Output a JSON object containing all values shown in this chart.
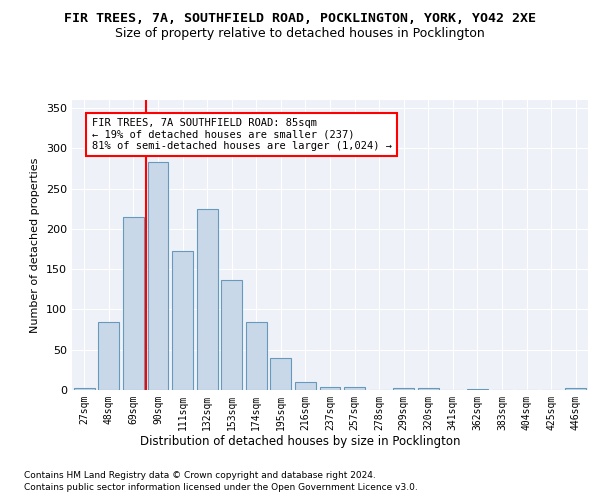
{
  "title1": "FIR TREES, 7A, SOUTHFIELD ROAD, POCKLINGTON, YORK, YO42 2XE",
  "title2": "Size of property relative to detached houses in Pocklington",
  "xlabel": "Distribution of detached houses by size in Pocklington",
  "ylabel": "Number of detached properties",
  "categories": [
    "27sqm",
    "48sqm",
    "69sqm",
    "90sqm",
    "111sqm",
    "132sqm",
    "153sqm",
    "174sqm",
    "195sqm",
    "216sqm",
    "237sqm",
    "257sqm",
    "278sqm",
    "299sqm",
    "320sqm",
    "341sqm",
    "362sqm",
    "383sqm",
    "404sqm",
    "425sqm",
    "446sqm"
  ],
  "values": [
    3,
    85,
    215,
    283,
    172,
    225,
    136,
    85,
    40,
    10,
    4,
    4,
    0,
    3,
    3,
    0,
    1,
    0,
    0,
    0,
    2
  ],
  "bar_color": "#c8d8e8",
  "bar_edge_color": "#6699bb",
  "vline_x": 2.5,
  "vline_color": "red",
  "annotation_line1": "FIR TREES, 7A SOUTHFIELD ROAD: 85sqm",
  "annotation_line2": "← 19% of detached houses are smaller (237)",
  "annotation_line3": "81% of semi-detached houses are larger (1,024) →",
  "ylim": [
    0,
    360
  ],
  "yticks": [
    0,
    50,
    100,
    150,
    200,
    250,
    300,
    350
  ],
  "footer1": "Contains HM Land Registry data © Crown copyright and database right 2024.",
  "footer2": "Contains public sector information licensed under the Open Government Licence v3.0.",
  "bg_color": "#eef2f8",
  "title_fontsize": 9.5,
  "subtitle_fontsize": 9
}
